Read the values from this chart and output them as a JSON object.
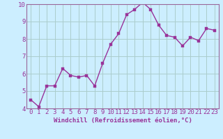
{
  "x": [
    0,
    1,
    2,
    3,
    4,
    5,
    6,
    7,
    8,
    9,
    10,
    11,
    12,
    13,
    14,
    15,
    16,
    17,
    18,
    19,
    20,
    21,
    22,
    23
  ],
  "y": [
    4.5,
    4.1,
    5.3,
    5.3,
    6.3,
    5.9,
    5.8,
    5.9,
    5.3,
    6.6,
    7.7,
    8.3,
    9.4,
    9.7,
    10.1,
    9.7,
    8.8,
    8.2,
    8.1,
    7.6,
    8.1,
    7.9,
    8.6,
    8.5
  ],
  "line_color": "#993399",
  "marker_color": "#993399",
  "bg_color": "#cceeff",
  "grid_color": "#aacccc",
  "xlabel": "Windchill (Refroidissement éolien,°C)",
  "ylim": [
    4,
    10
  ],
  "xlim_min": -0.5,
  "xlim_max": 23.5,
  "yticks": [
    4,
    5,
    6,
    7,
    8,
    9,
    10
  ],
  "xtick_labels": [
    "0",
    "1",
    "2",
    "3",
    "4",
    "5",
    "6",
    "7",
    "8",
    "9",
    "10",
    "11",
    "12",
    "13",
    "14",
    "15",
    "16",
    "17",
    "18",
    "19",
    "20",
    "21",
    "22",
    "23"
  ],
  "xlabel_fontsize": 6.5,
  "tick_fontsize": 6.5,
  "line_width": 1.0,
  "marker_size": 2.5,
  "spine_color": "#996699"
}
